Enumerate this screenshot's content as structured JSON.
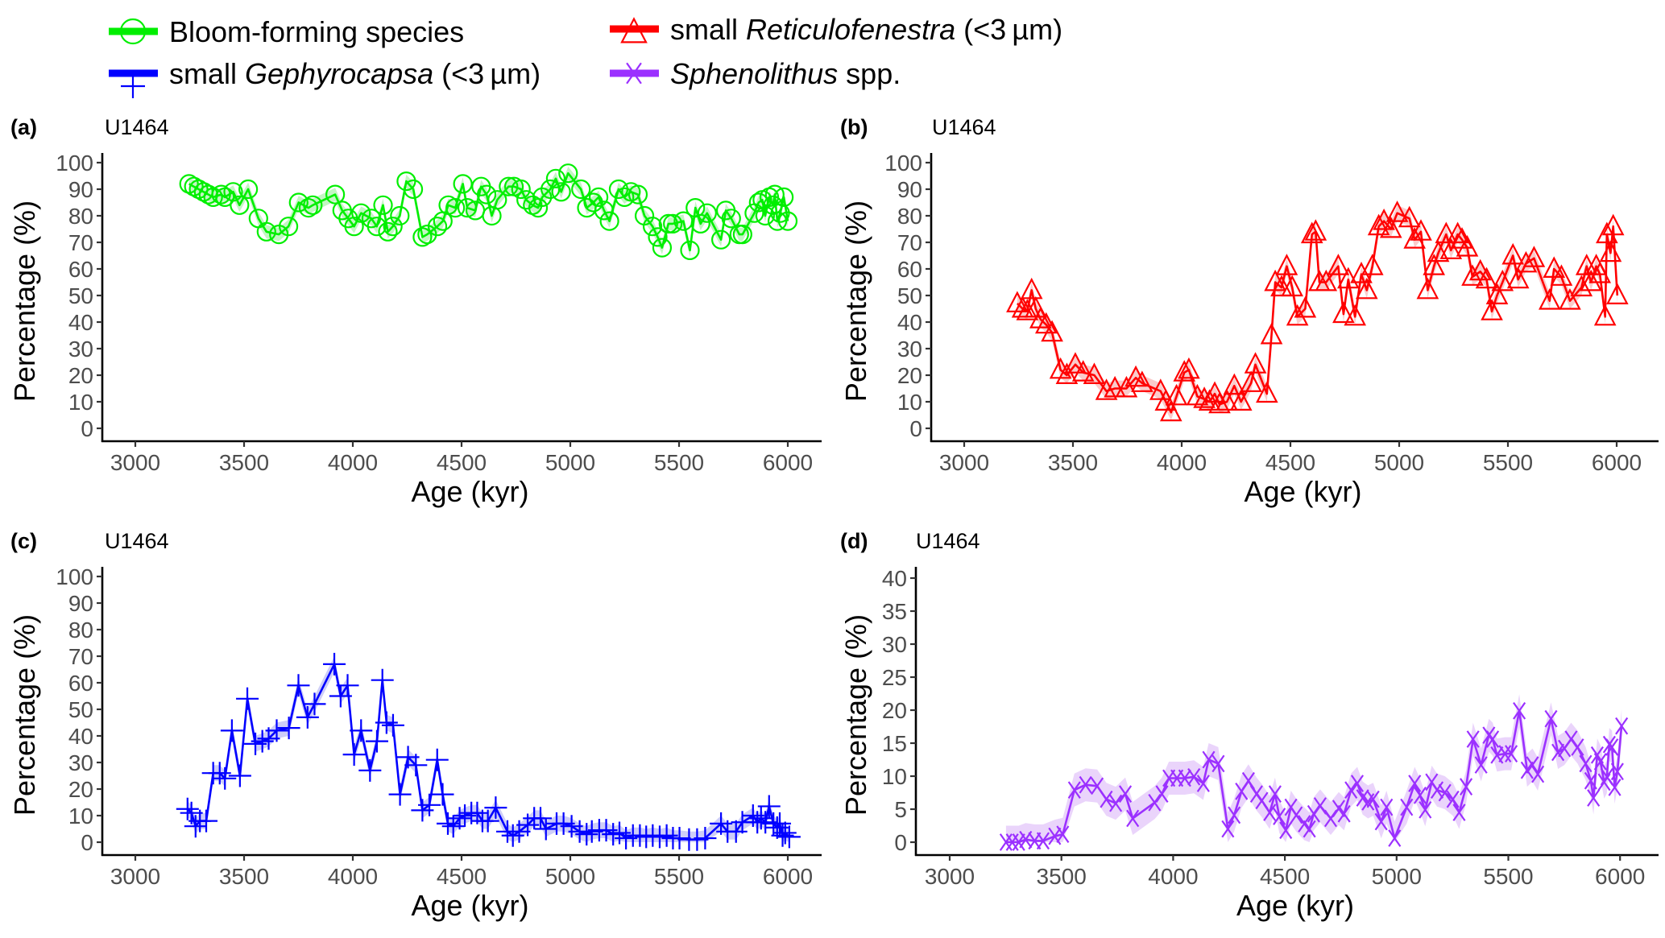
{
  "legend": [
    {
      "id": "bloom",
      "parts": [
        {
          "text": "Bloom-forming species",
          "italic": false
        }
      ],
      "color": "#00ee00",
      "marker": "circle"
    },
    {
      "id": "gephyrocapsa",
      "parts": [
        {
          "text": "small ",
          "italic": false
        },
        {
          "text": "Gephyrocapsa",
          "italic": true
        },
        {
          "text": " (<3 µm)",
          "italic": false
        }
      ],
      "color": "#0000ff",
      "marker": "plus"
    },
    {
      "id": "reticulofenestra",
      "parts": [
        {
          "text": "small ",
          "italic": false
        },
        {
          "text": "Reticulofenestra",
          "italic": true
        },
        {
          "text": " (<3 µm)",
          "italic": false
        }
      ],
      "color": "#ff0000",
      "marker": "triangle"
    },
    {
      "id": "sphenolithus",
      "parts": [
        {
          "text": "Sphenolithus",
          "italic": true
        },
        {
          "text": " spp.",
          "italic": false
        }
      ],
      "color": "#9b30ff",
      "marker": "x"
    }
  ],
  "chart_data": [
    {
      "panel": "(a)",
      "site": "U1464",
      "type": "line",
      "series_name": "Bloom-forming species",
      "color": "#00ee00",
      "band_color": "#b8f5b8",
      "marker": "circle",
      "xlabel": "Age (kyr)",
      "ylabel": "Percentage (%)",
      "xlim": [
        2900,
        6150
      ],
      "ylim": [
        0,
        100
      ],
      "xticks": [
        3000,
        3500,
        4000,
        4500,
        5000,
        5500,
        6000
      ],
      "yticks": [
        0,
        10,
        20,
        30,
        40,
        50,
        60,
        70,
        80,
        90,
        100
      ],
      "band_halfwidth": 2.5,
      "x": [
        3247,
        3269,
        3291,
        3314,
        3336,
        3358,
        3395,
        3412,
        3450,
        3479,
        3519,
        3566,
        3603,
        3660,
        3704,
        3751,
        3796,
        3816,
        3919,
        3951,
        3979,
        4006,
        4038,
        4085,
        4110,
        4139,
        4161,
        4184,
        4216,
        4246,
        4278,
        4320,
        4342,
        4389,
        4414,
        4439,
        4471,
        4506,
        4526,
        4563,
        4590,
        4615,
        4639,
        4664,
        4716,
        4741,
        4773,
        4797,
        4827,
        4852,
        4871,
        4908,
        4933,
        4958,
        4990,
        5049,
        5076,
        5106,
        5130,
        5155,
        5180,
        5222,
        5249,
        5279,
        5311,
        5341,
        5378,
        5402,
        5422,
        5451,
        5471,
        5520,
        5550,
        5575,
        5599,
        5629,
        5693,
        5715,
        5740,
        5777,
        5792,
        5846,
        5866,
        5883,
        5896,
        5915,
        5932,
        5940,
        5952,
        5965,
        5982,
        6000
      ],
      "y": [
        92,
        91,
        90,
        89,
        88,
        87,
        88,
        87,
        89,
        84,
        90,
        79,
        74,
        73,
        76,
        85,
        83,
        84,
        88,
        82,
        79,
        76,
        81,
        79,
        76,
        84,
        74,
        76,
        80,
        93,
        90,
        72,
        73,
        76,
        78,
        84,
        83,
        92,
        83,
        82,
        91,
        88,
        80,
        86,
        91,
        91,
        90,
        86,
        84,
        83,
        87,
        90,
        94,
        89,
        96,
        90,
        83,
        85,
        87,
        82,
        78,
        90,
        87,
        89,
        88,
        80,
        76,
        72,
        68,
        77,
        77,
        78,
        67,
        83,
        77,
        81,
        71,
        82,
        79,
        73,
        73,
        81,
        85,
        86,
        80,
        87,
        84,
        88,
        78,
        81,
        87,
        78
      ]
    },
    {
      "panel": "(b)",
      "site": "U1464",
      "type": "line",
      "series_name": "small Reticulofenestra (<3 µm)",
      "color": "#ff0000",
      "band_color": "#f9c2c2",
      "marker": "triangle",
      "xlabel": "Age (kyr)",
      "ylabel": "Percentage (%)",
      "xlim": [
        2900,
        6150
      ],
      "ylim": [
        0,
        100
      ],
      "xticks": [
        3000,
        3500,
        4000,
        4500,
        5000,
        5500,
        6000
      ],
      "yticks": [
        0,
        10,
        20,
        30,
        40,
        50,
        60,
        70,
        80,
        90,
        100
      ],
      "band_halfwidth": 3,
      "x": [
        3244,
        3269,
        3290,
        3310,
        3329,
        3351,
        3377,
        3404,
        3443,
        3472,
        3511,
        3547,
        3598,
        3654,
        3693,
        3746,
        3789,
        3818,
        3903,
        3927,
        3951,
        3976,
        4012,
        4033,
        4072,
        4104,
        4128,
        4152,
        4174,
        4208,
        4242,
        4273,
        4319,
        4339,
        4392,
        4413,
        4430,
        4459,
        4483,
        4508,
        4532,
        4568,
        4599,
        4616,
        4633,
        4664,
        4720,
        4744,
        4766,
        4797,
        4826,
        4851,
        4877,
        4906,
        4930,
        4962,
        4991,
        5047,
        5071,
        5100,
        5131,
        5160,
        5180,
        5216,
        5238,
        5269,
        5289,
        5313,
        5337,
        5373,
        5402,
        5426,
        5450,
        5475,
        5523,
        5547,
        5583,
        5620,
        5692,
        5712,
        5746,
        5785,
        5838,
        5862,
        5882,
        5906,
        5923,
        5947,
        5955,
        5972,
        5984,
        6003
      ],
      "y": [
        47,
        45,
        44,
        52,
        45,
        41,
        39,
        36,
        22,
        20,
        24,
        21,
        20,
        14,
        15,
        15,
        19,
        17,
        14,
        10,
        6,
        12,
        21,
        22,
        12,
        11,
        10,
        13,
        9,
        10,
        16,
        10,
        17,
        24,
        13,
        35,
        55,
        53,
        61,
        53,
        42,
        45,
        73,
        74,
        55,
        55,
        61,
        43,
        56,
        42,
        58,
        52,
        61,
        76,
        78,
        75,
        81,
        79,
        71,
        74,
        52,
        61,
        66,
        73,
        67,
        73,
        71,
        68,
        57,
        59,
        56,
        44,
        50,
        55,
        65,
        56,
        62,
        64,
        48,
        60,
        57,
        48,
        53,
        61,
        55,
        61,
        58,
        42,
        73,
        66,
        76,
        50
      ]
    },
    {
      "panel": "(c)",
      "site": "U1464",
      "type": "line",
      "series_name": "small Gephyrocapsa (<3 µm)",
      "color": "#0000ff",
      "band_color": "#c4c4f7",
      "marker": "plus",
      "xlabel": "Age (kyr)",
      "ylabel": "Percentage (%)",
      "xlim": [
        2900,
        6150
      ],
      "ylim": [
        0,
        100
      ],
      "xticks": [
        3000,
        3500,
        4000,
        4500,
        5000,
        5500,
        6000
      ],
      "yticks": [
        0,
        10,
        20,
        30,
        40,
        50,
        60,
        70,
        80,
        90,
        100
      ],
      "band_halfwidth": 3,
      "x": [
        3240,
        3258,
        3277,
        3297,
        3326,
        3358,
        3388,
        3412,
        3444,
        3481,
        3515,
        3552,
        3584,
        3613,
        3650,
        3706,
        3750,
        3792,
        3824,
        3915,
        3944,
        3976,
        4006,
        4038,
        4079,
        4111,
        4136,
        4155,
        4185,
        4217,
        4254,
        4290,
        4320,
        4352,
        4388,
        4413,
        4437,
        4462,
        4491,
        4515,
        4545,
        4572,
        4596,
        4621,
        4657,
        4711,
        4736,
        4765,
        4804,
        4834,
        4863,
        4888,
        4937,
        4969,
        5006,
        5043,
        5075,
        5099,
        5133,
        5165,
        5197,
        5226,
        5256,
        5288,
        5320,
        5349,
        5379,
        5411,
        5443,
        5472,
        5502,
        5546,
        5583,
        5620,
        5693,
        5723,
        5762,
        5791,
        5840,
        5860,
        5877,
        5897,
        5914,
        5934,
        5951,
        5963,
        5976,
        5988,
        6007
      ],
      "y": [
        12.5,
        11,
        6,
        8,
        8,
        26,
        26,
        24,
        42,
        25,
        54,
        37,
        38,
        39,
        42,
        43,
        59,
        47,
        52,
        67,
        55,
        59,
        33,
        42,
        27,
        38,
        61,
        45,
        44,
        18,
        32,
        29,
        12,
        14,
        31,
        18,
        7,
        6,
        9,
        10,
        11,
        11,
        8,
        8,
        13,
        4,
        2.5,
        4,
        6.5,
        9,
        9,
        5,
        7,
        7,
        6,
        4,
        3,
        4,
        4.5,
        4.5,
        3,
        3.5,
        1.5,
        2.5,
        2.5,
        2,
        2.5,
        2,
        2.5,
        1.5,
        1.5,
        1,
        1,
        1.5,
        7,
        4,
        4,
        7.5,
        10,
        7.5,
        9,
        7.5,
        13.5,
        7,
        5.5,
        7,
        2.5,
        3.5,
        2
      ]
    },
    {
      "panel": "(d)",
      "site": "U1464",
      "type": "line",
      "series_name": "Sphenolithus spp.",
      "color": "#9b30ff",
      "band_color": "#e6ccfa",
      "marker": "x",
      "xlabel": "Age (kyr)",
      "ylabel": "Percentage (%)",
      "xlim": [
        2850,
        6150
      ],
      "ylim": [
        0,
        40
      ],
      "xticks": [
        3000,
        3500,
        4000,
        4500,
        5000,
        5500,
        6000
      ],
      "yticks": [
        0,
        5,
        10,
        15,
        20,
        25,
        30,
        35,
        40
      ],
      "band_halfwidth": 2.5,
      "x": [
        3252,
        3280,
        3309,
        3340,
        3380,
        3418,
        3470,
        3506,
        3558,
        3608,
        3660,
        3701,
        3743,
        3786,
        3819,
        3917,
        3950,
        3981,
        4017,
        4052,
        4093,
        4135,
        4159,
        4202,
        4245,
        4273,
        4306,
        4337,
        4373,
        4397,
        4432,
        4456,
        4475,
        4504,
        4527,
        4551,
        4587,
        4610,
        4629,
        4658,
        4705,
        4741,
        4765,
        4796,
        4824,
        4848,
        4872,
        4895,
        4931,
        4955,
        4991,
        5045,
        5081,
        5105,
        5128,
        5157,
        5181,
        5216,
        5252,
        5280,
        5311,
        5342,
        5378,
        5413,
        5430,
        5449,
        5485,
        5513,
        5549,
        5584,
        5608,
        5632,
        5691,
        5722,
        5751,
        5781,
        5810,
        5846,
        5869,
        5881,
        5898,
        5912,
        5929,
        5941,
        5952,
        5964,
        5976,
        5988,
        6007
      ],
      "y": [
        0,
        0,
        0,
        0.4,
        0.2,
        0.2,
        0.9,
        1.2,
        7.9,
        8.7,
        8.5,
        6.5,
        5.9,
        7.3,
        3.6,
        6.0,
        7.3,
        9.7,
        9.7,
        9.7,
        9.9,
        8.9,
        12.5,
        11.9,
        2.0,
        4.1,
        7.7,
        9.3,
        7.3,
        6.3,
        4.5,
        7.3,
        3.9,
        1.8,
        5.3,
        4.1,
        2.8,
        2.0,
        4.3,
        5.5,
        3.6,
        5.1,
        4.3,
        7.9,
        8.9,
        6.7,
        6.1,
        6.5,
        3.1,
        5.3,
        0.6,
        5.3,
        8.9,
        7.1,
        4.9,
        9.1,
        7.9,
        7.5,
        6.5,
        4.5,
        8.4,
        15.6,
        11.7,
        16.2,
        15.6,
        13.2,
        13.4,
        13.4,
        19.9,
        10.9,
        11.7,
        10.3,
        18.7,
        13.6,
        14.2,
        15.6,
        14.4,
        11.9,
        9.3,
        6.7,
        13.2,
        12.2,
        9.1,
        9.9,
        14.8,
        14.4,
        8.3,
        10.7,
        17.6
      ]
    }
  ]
}
